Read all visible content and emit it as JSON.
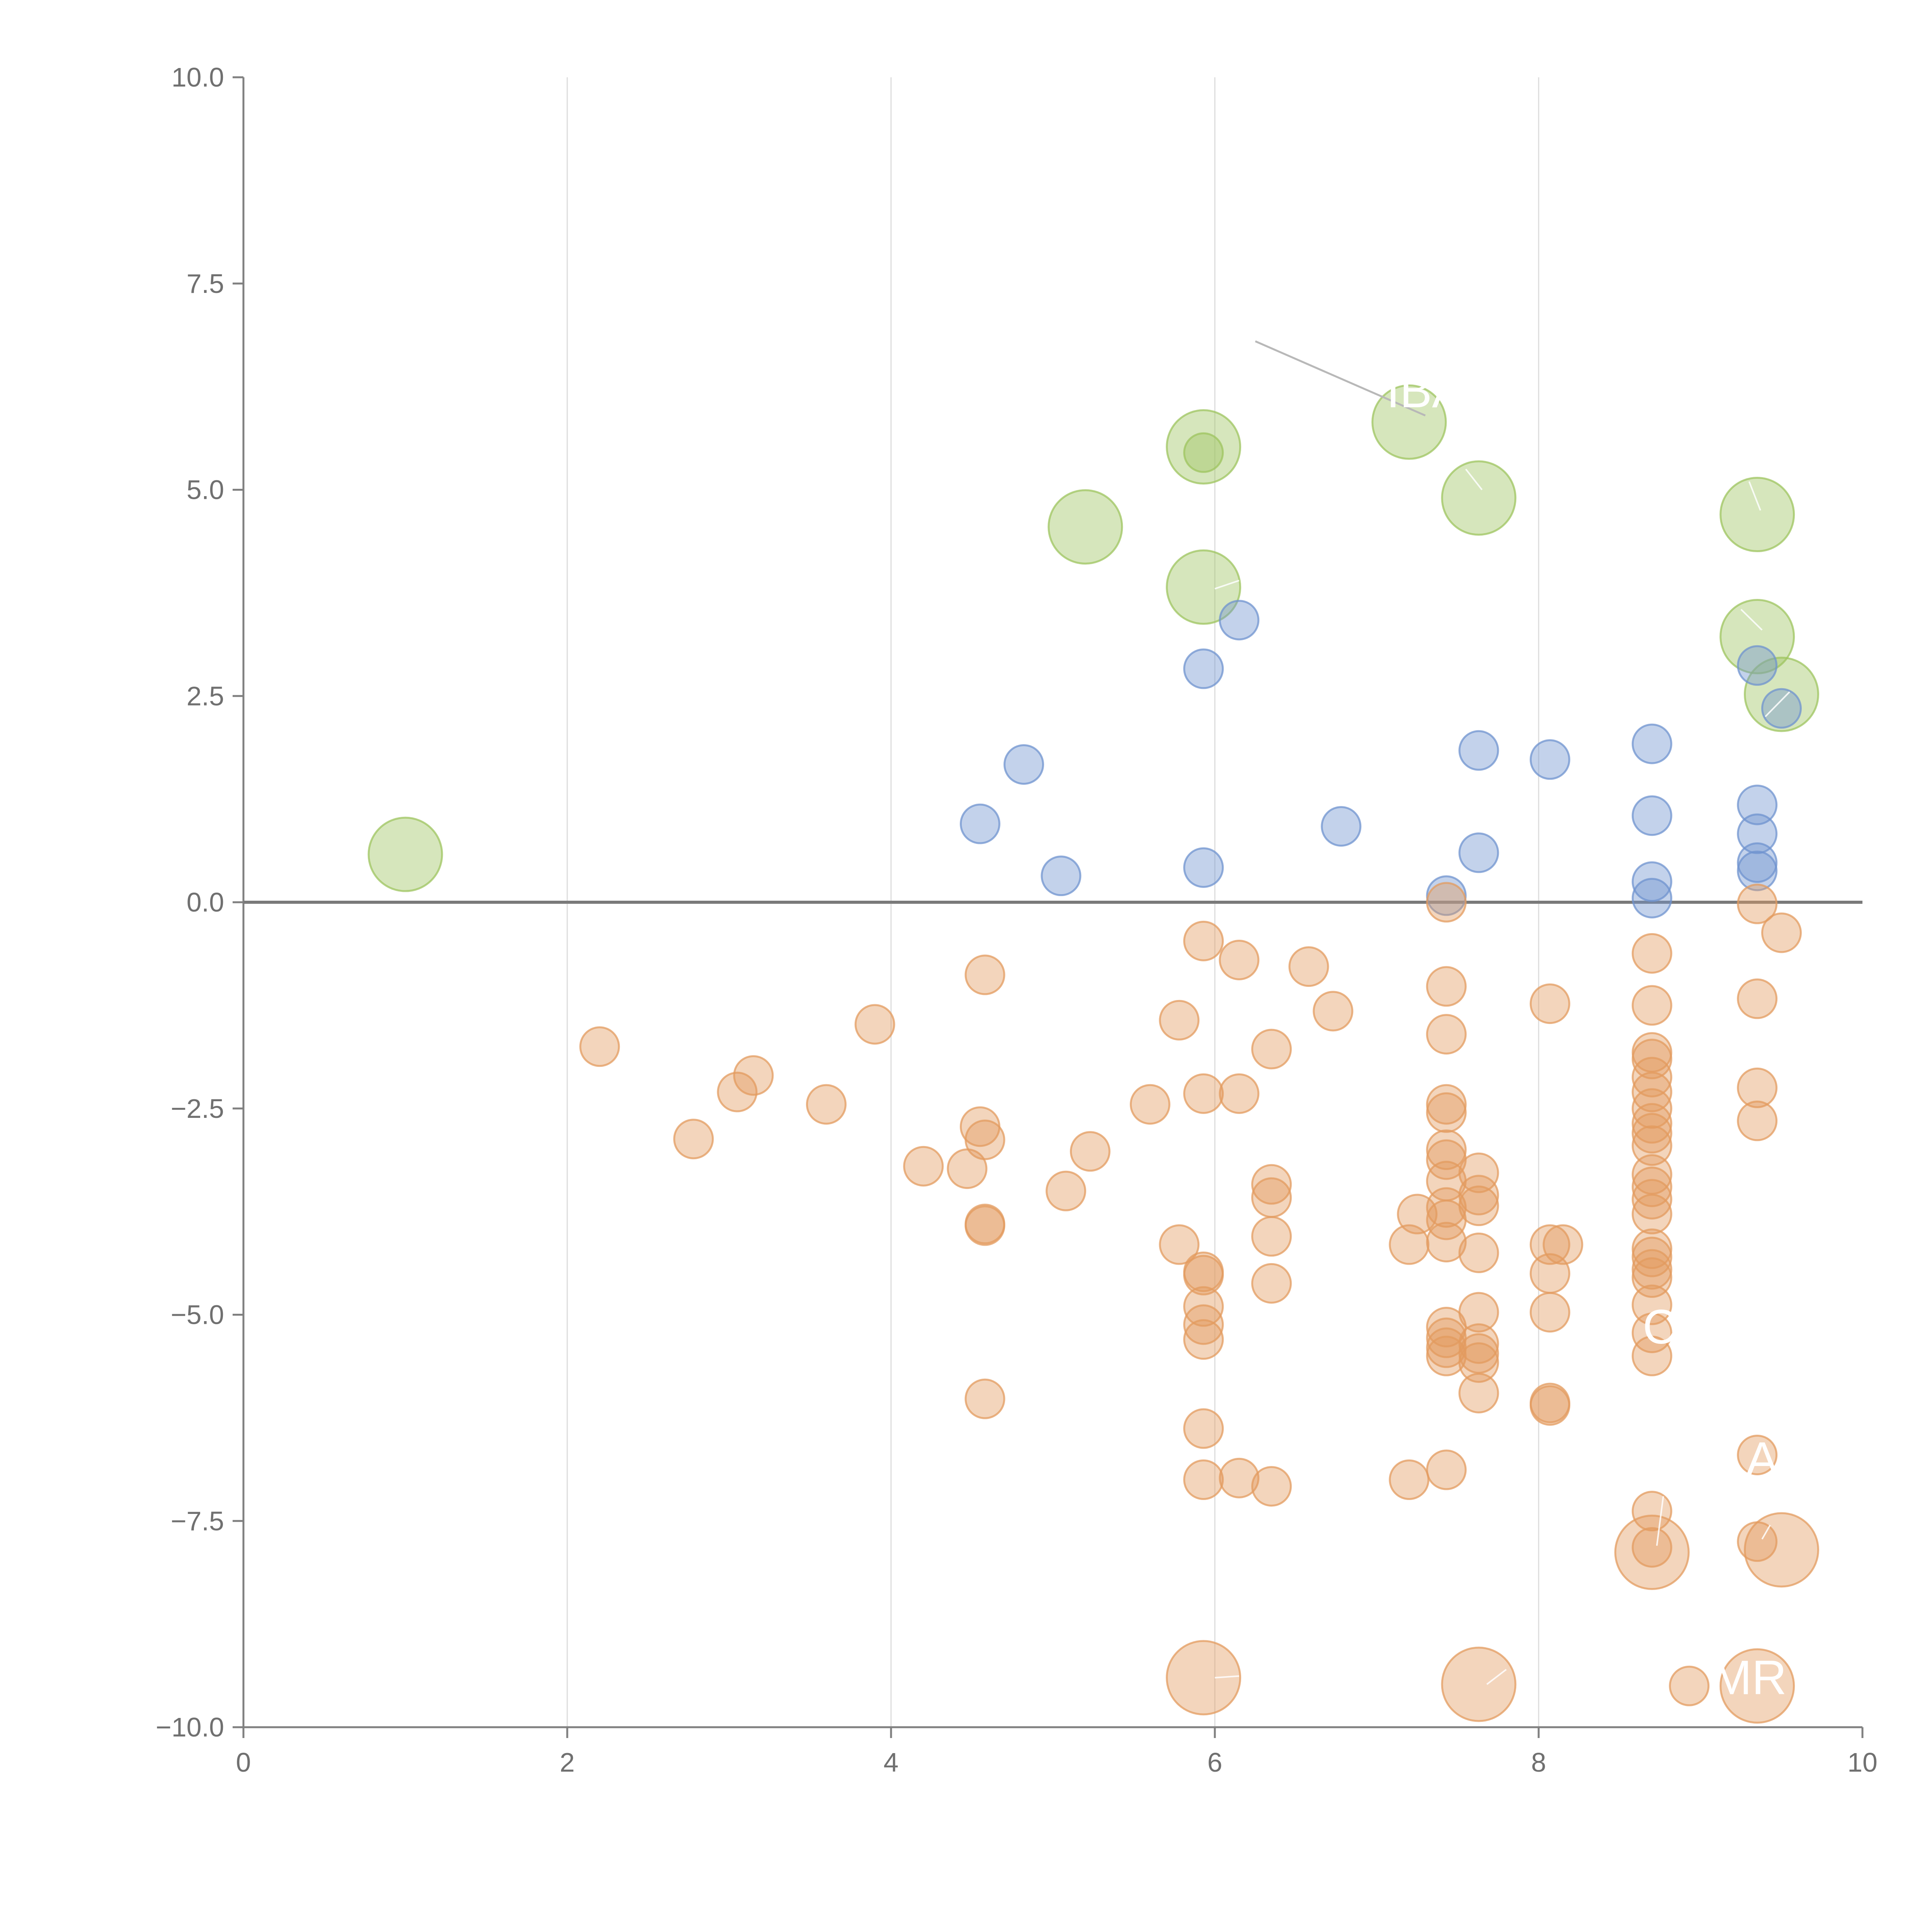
{
  "chart_data": {
    "type": "scatter",
    "title": "",
    "xlabel": "",
    "ylabel": "",
    "xlim": [
      0,
      10
    ],
    "ylim": [
      -10,
      10
    ],
    "x_ticks": [
      0,
      2,
      4,
      6,
      8,
      10
    ],
    "x_tick_labels": [
      "0",
      "2",
      "4",
      "6",
      "8",
      "10"
    ],
    "y_ticks": [
      10,
      7.5,
      5,
      2.5,
      0,
      -2.5,
      -5,
      -7.5,
      -10
    ],
    "y_tick_labels": [
      "10.0",
      "7.5",
      "5.0",
      "2.5",
      "0.0",
      "−2.5",
      "−5.0",
      "−7.5",
      "−10.0"
    ],
    "grid": "vertical",
    "legend": "none",
    "series": [
      {
        "name": "green",
        "color": "#9dc45f",
        "points": [
          {
            "x": 1.0,
            "y": 0.58,
            "size": "large"
          },
          {
            "x": 5.2,
            "y": 4.55,
            "size": "large"
          },
          {
            "x": 5.93,
            "y": 5.52,
            "size": "large"
          },
          {
            "x": 5.93,
            "y": 5.45,
            "size": "small"
          },
          {
            "x": 5.93,
            "y": 3.82,
            "size": "large"
          },
          {
            "x": 7.2,
            "y": 5.82,
            "size": "large"
          },
          {
            "x": 7.63,
            "y": 4.9,
            "size": "large"
          },
          {
            "x": 9.35,
            "y": 4.7,
            "size": "large"
          },
          {
            "x": 9.35,
            "y": 3.22,
            "size": "large"
          },
          {
            "x": 9.5,
            "y": 2.52,
            "size": "large"
          }
        ]
      },
      {
        "name": "blue",
        "color": "#6f93cf",
        "points": [
          {
            "x": 4.55,
            "y": 0.95
          },
          {
            "x": 4.82,
            "y": 1.67
          },
          {
            "x": 5.05,
            "y": 0.32
          },
          {
            "x": 5.93,
            "y": 2.83
          },
          {
            "x": 5.93,
            "y": 0.42
          },
          {
            "x": 6.15,
            "y": 3.42
          },
          {
            "x": 6.78,
            "y": 0.92
          },
          {
            "x": 7.43,
            "y": 0.08
          },
          {
            "x": 7.63,
            "y": 1.84
          },
          {
            "x": 7.63,
            "y": 0.6
          },
          {
            "x": 8.07,
            "y": 1.73
          },
          {
            "x": 8.7,
            "y": 1.92
          },
          {
            "x": 8.7,
            "y": 1.05
          },
          {
            "x": 8.7,
            "y": 0.25
          },
          {
            "x": 8.7,
            "y": 0.05
          },
          {
            "x": 9.35,
            "y": 2.87
          },
          {
            "x": 9.35,
            "y": 1.18
          },
          {
            "x": 9.35,
            "y": 0.83
          },
          {
            "x": 9.35,
            "y": 0.48
          },
          {
            "x": 9.35,
            "y": 0.38
          },
          {
            "x": 9.5,
            "y": 2.35
          }
        ]
      },
      {
        "name": "orange",
        "color": "#e39b5f",
        "points": [
          {
            "x": 2.2,
            "y": -1.75
          },
          {
            "x": 2.78,
            "y": -2.87
          },
          {
            "x": 3.05,
            "y": -2.3
          },
          {
            "x": 3.15,
            "y": -2.1
          },
          {
            "x": 3.6,
            "y": -2.45
          },
          {
            "x": 3.9,
            "y": -1.48
          },
          {
            "x": 4.2,
            "y": -3.2
          },
          {
            "x": 4.47,
            "y": -3.23
          },
          {
            "x": 4.55,
            "y": -2.72
          },
          {
            "x": 4.58,
            "y": -2.88
          },
          {
            "x": 4.58,
            "y": -0.88
          },
          {
            "x": 4.58,
            "y": -3.9
          },
          {
            "x": 4.58,
            "y": -3.92
          },
          {
            "x": 4.58,
            "y": -6.02
          },
          {
            "x": 5.08,
            "y": -3.5
          },
          {
            "x": 5.23,
            "y": -3.02
          },
          {
            "x": 5.6,
            "y": -2.45
          },
          {
            "x": 5.78,
            "y": -1.43
          },
          {
            "x": 5.78,
            "y": -4.15
          },
          {
            "x": 5.93,
            "y": -0.47
          },
          {
            "x": 5.93,
            "y": -2.32
          },
          {
            "x": 5.93,
            "y": -4.48
          },
          {
            "x": 5.93,
            "y": -4.52
          },
          {
            "x": 5.93,
            "y": -4.9
          },
          {
            "x": 5.93,
            "y": -5.12
          },
          {
            "x": 5.93,
            "y": -5.3
          },
          {
            "x": 5.93,
            "y": -6.38
          },
          {
            "x": 5.93,
            "y": -7.0
          },
          {
            "x": 6.15,
            "y": -0.7
          },
          {
            "x": 6.15,
            "y": -2.32
          },
          {
            "x": 6.15,
            "y": -6.98
          },
          {
            "x": 6.35,
            "y": -1.78
          },
          {
            "x": 6.35,
            "y": -3.42
          },
          {
            "x": 6.35,
            "y": -3.58
          },
          {
            "x": 6.35,
            "y": -4.05
          },
          {
            "x": 6.35,
            "y": -4.62
          },
          {
            "x": 6.35,
            "y": -7.08
          },
          {
            "x": 6.58,
            "y": -0.78
          },
          {
            "x": 6.73,
            "y": -1.32
          },
          {
            "x": 7.2,
            "y": -4.15
          },
          {
            "x": 7.2,
            "y": -7.0
          },
          {
            "x": 7.25,
            "y": -3.78
          },
          {
            "x": 7.43,
            "y": 0.0
          },
          {
            "x": 7.43,
            "y": -1.02
          },
          {
            "x": 7.43,
            "y": -1.6
          },
          {
            "x": 7.43,
            "y": -2.45
          },
          {
            "x": 7.43,
            "y": -2.55
          },
          {
            "x": 7.43,
            "y": -3.0
          },
          {
            "x": 7.43,
            "y": -3.12
          },
          {
            "x": 7.43,
            "y": -3.38
          },
          {
            "x": 7.43,
            "y": -3.7
          },
          {
            "x": 7.43,
            "y": -3.85
          },
          {
            "x": 7.43,
            "y": -4.12
          },
          {
            "x": 7.43,
            "y": -5.15
          },
          {
            "x": 7.43,
            "y": -5.28
          },
          {
            "x": 7.43,
            "y": -5.4
          },
          {
            "x": 7.43,
            "y": -5.5
          },
          {
            "x": 7.43,
            "y": -6.88
          },
          {
            "x": 7.63,
            "y": -3.28
          },
          {
            "x": 7.63,
            "y": -3.55
          },
          {
            "x": 7.63,
            "y": -3.68
          },
          {
            "x": 7.63,
            "y": -4.25
          },
          {
            "x": 7.63,
            "y": -4.97
          },
          {
            "x": 7.63,
            "y": -5.35
          },
          {
            "x": 7.63,
            "y": -5.47
          },
          {
            "x": 7.63,
            "y": -5.58
          },
          {
            "x": 7.63,
            "y": -5.95
          },
          {
            "x": 8.07,
            "y": -1.23
          },
          {
            "x": 8.07,
            "y": -4.15
          },
          {
            "x": 8.07,
            "y": -4.5
          },
          {
            "x": 8.07,
            "y": -4.97
          },
          {
            "x": 8.07,
            "y": -6.07
          },
          {
            "x": 8.07,
            "y": -6.1
          },
          {
            "x": 8.15,
            "y": -4.15
          },
          {
            "x": 8.7,
            "y": -0.62
          },
          {
            "x": 8.7,
            "y": -1.25
          },
          {
            "x": 8.7,
            "y": -1.82
          },
          {
            "x": 8.7,
            "y": -1.9
          },
          {
            "x": 8.7,
            "y": -2.12
          },
          {
            "x": 8.7,
            "y": -2.3
          },
          {
            "x": 8.7,
            "y": -2.5
          },
          {
            "x": 8.7,
            "y": -2.68
          },
          {
            "x": 8.7,
            "y": -2.8
          },
          {
            "x": 8.7,
            "y": -2.95
          },
          {
            "x": 8.7,
            "y": -3.3
          },
          {
            "x": 8.7,
            "y": -3.45
          },
          {
            "x": 8.7,
            "y": -3.6
          },
          {
            "x": 8.7,
            "y": -3.78
          },
          {
            "x": 8.7,
            "y": -4.2
          },
          {
            "x": 8.7,
            "y": -4.3
          },
          {
            "x": 8.7,
            "y": -4.45
          },
          {
            "x": 8.7,
            "y": -4.55
          },
          {
            "x": 8.7,
            "y": -4.88
          },
          {
            "x": 8.7,
            "y": -5.22
          },
          {
            "x": 8.7,
            "y": -5.5
          },
          {
            "x": 8.7,
            "y": -7.38
          },
          {
            "x": 8.7,
            "y": -7.82
          },
          {
            "x": 8.7,
            "y": -7.88,
            "size": "large"
          },
          {
            "x": 8.93,
            "y": -9.5
          },
          {
            "x": 9.35,
            "y": -0.02
          },
          {
            "x": 9.35,
            "y": -1.17
          },
          {
            "x": 9.35,
            "y": -2.25
          },
          {
            "x": 9.35,
            "y": -2.65
          },
          {
            "x": 9.35,
            "y": -6.7
          },
          {
            "x": 9.35,
            "y": -7.75
          },
          {
            "x": 9.35,
            "y": -9.5,
            "size": "large"
          },
          {
            "x": 9.5,
            "y": -0.37
          },
          {
            "x": 9.5,
            "y": -7.85,
            "size": "large"
          },
          {
            "x": 5.93,
            "y": -9.4,
            "size": "large"
          },
          {
            "x": 7.63,
            "y": -9.48,
            "size": "large"
          }
        ]
      }
    ],
    "annotations": [
      {
        "text": "IBA",
        "x": 7.3,
        "y": 6.0,
        "color": "#ffffff"
      },
      {
        "text": "MR",
        "x": 9.3,
        "y": -9.6,
        "color": "#ffffff"
      },
      {
        "text": "C",
        "x": 8.75,
        "y": -5.35,
        "color": "#ffffff"
      },
      {
        "text": "A",
        "x": 9.38,
        "y": -6.95,
        "color": "#ffffff"
      }
    ]
  }
}
